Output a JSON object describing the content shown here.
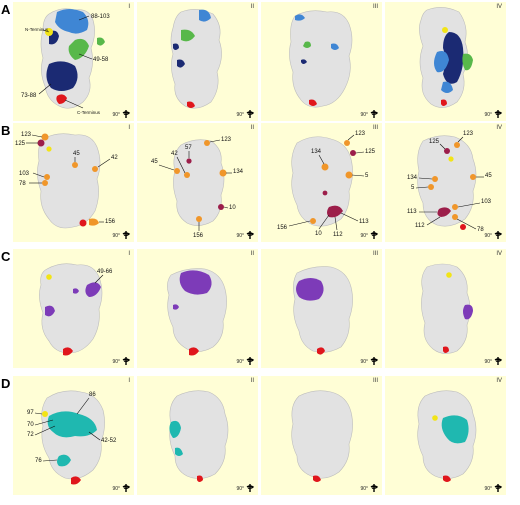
{
  "rows": [
    {
      "letter": "A",
      "panels": [
        {
          "numeral": "I",
          "labels": [
            "N-Terminus",
            "88-103",
            "49-58",
            "73-88",
            "C-Terminus"
          ],
          "rotation": "90°"
        },
        {
          "numeral": "II",
          "labels": [],
          "rotation": "90°"
        },
        {
          "numeral": "III",
          "labels": [],
          "rotation": "90°"
        },
        {
          "numeral": "IV",
          "labels": [],
          "rotation": "90°"
        }
      ]
    },
    {
      "letter": "B",
      "panels": [
        {
          "numeral": "I",
          "labels": [
            "123",
            "125",
            "45",
            "42",
            "103",
            "78",
            "156"
          ],
          "rotation": "90°"
        },
        {
          "numeral": "II",
          "labels": [
            "123",
            "57",
            "45",
            "42",
            "134",
            "10",
            "156"
          ],
          "rotation": "90°"
        },
        {
          "numeral": "III",
          "labels": [
            "123",
            "125",
            "134",
            "5",
            "113",
            "112",
            "10",
            "156"
          ],
          "rotation": "90°"
        },
        {
          "numeral": "IV",
          "labels": [
            "125",
            "123",
            "45",
            "134",
            "5",
            "103",
            "113",
            "112",
            "78"
          ],
          "rotation": "90°"
        }
      ]
    },
    {
      "letter": "C",
      "panels": [
        {
          "numeral": "I",
          "labels": [
            "49-66"
          ],
          "rotation": "90°"
        },
        {
          "numeral": "II",
          "labels": [],
          "rotation": "90°"
        },
        {
          "numeral": "III",
          "labels": [],
          "rotation": "90°"
        },
        {
          "numeral": "IV",
          "labels": [],
          "rotation": "90°"
        }
      ]
    },
    {
      "letter": "D",
      "panels": [
        {
          "numeral": "I",
          "labels": [
            "97",
            "86",
            "70",
            "72",
            "42-52",
            "76"
          ],
          "rotation": "90°"
        },
        {
          "numeral": "II",
          "labels": [],
          "rotation": "90°"
        },
        {
          "numeral": "III",
          "labels": [],
          "rotation": "90°"
        },
        {
          "numeral": "IV",
          "labels": [],
          "rotation": "90°"
        }
      ]
    }
  ],
  "colors": {
    "panel_bg": "#fffed6",
    "protein": "#e2e2e2",
    "n_terminus": "#f2e417",
    "c_terminus": "#e0161c",
    "region_88_103": "#3f86d4",
    "region_49_58": "#58b84a",
    "region_73_88": "#1b2a73",
    "epitope_b_orange": "#f0962a",
    "epitope_b_maroon": "#9c1e4a",
    "epitope_c": "#7d3bb8",
    "epitope_d": "#1fb8b0"
  }
}
